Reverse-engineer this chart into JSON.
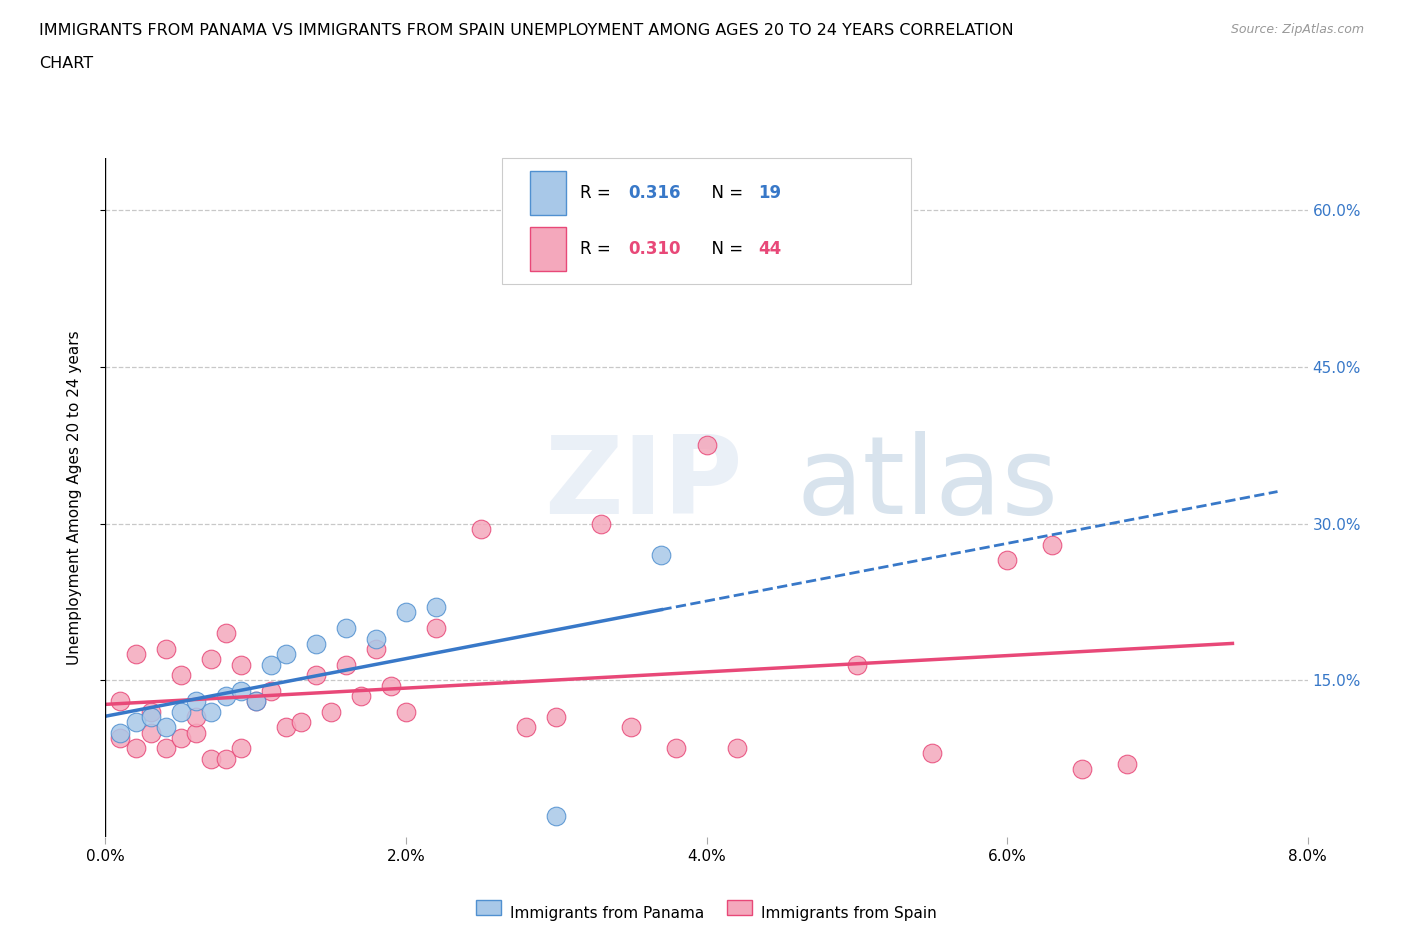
{
  "title_line1": "IMMIGRANTS FROM PANAMA VS IMMIGRANTS FROM SPAIN UNEMPLOYMENT AMONG AGES 20 TO 24 YEARS CORRELATION",
  "title_line2": "CHART",
  "source": "Source: ZipAtlas.com",
  "ylabel": "Unemployment Among Ages 20 to 24 years",
  "xlim": [
    0.0,
    0.08
  ],
  "ylim": [
    0.0,
    0.65
  ],
  "xticks": [
    0.0,
    0.02,
    0.04,
    0.06,
    0.08
  ],
  "xticklabels": [
    "0.0%",
    "2.0%",
    "4.0%",
    "6.0%",
    "8.0%"
  ],
  "ytick_positions": [
    0.15,
    0.3,
    0.45,
    0.6
  ],
  "ytick_labels": [
    "15.0%",
    "30.0%",
    "45.0%",
    "60.0%"
  ],
  "grid_color": "#c8c8c8",
  "bg_color": "#ffffff",
  "panama_fill": "#a8c8e8",
  "spain_fill": "#f4a8bc",
  "panama_edge": "#5090d0",
  "spain_edge": "#e84878",
  "panama_line_color": "#3878c8",
  "spain_line_color": "#e84878",
  "panama_R": "0.316",
  "panama_N": "19",
  "spain_R": "0.310",
  "spain_N": "44",
  "legend_label_panama": "Immigrants from Panama",
  "legend_label_spain": "Immigrants from Spain",
  "panama_x": [
    0.001,
    0.002,
    0.003,
    0.004,
    0.005,
    0.006,
    0.007,
    0.008,
    0.009,
    0.01,
    0.011,
    0.012,
    0.014,
    0.016,
    0.018,
    0.02,
    0.022,
    0.03,
    0.037
  ],
  "panama_y": [
    0.1,
    0.11,
    0.115,
    0.105,
    0.12,
    0.13,
    0.12,
    0.135,
    0.14,
    0.13,
    0.165,
    0.175,
    0.185,
    0.2,
    0.19,
    0.215,
    0.22,
    0.02,
    0.27
  ],
  "spain_x": [
    0.001,
    0.001,
    0.002,
    0.002,
    0.003,
    0.003,
    0.004,
    0.004,
    0.005,
    0.005,
    0.006,
    0.006,
    0.007,
    0.007,
    0.008,
    0.008,
    0.009,
    0.009,
    0.01,
    0.011,
    0.012,
    0.013,
    0.014,
    0.015,
    0.016,
    0.017,
    0.018,
    0.019,
    0.02,
    0.022,
    0.025,
    0.028,
    0.03,
    0.033,
    0.035,
    0.038,
    0.04,
    0.042,
    0.05,
    0.055,
    0.06,
    0.063,
    0.065,
    0.068
  ],
  "spain_y": [
    0.095,
    0.13,
    0.085,
    0.175,
    0.1,
    0.12,
    0.085,
    0.18,
    0.095,
    0.155,
    0.1,
    0.115,
    0.075,
    0.17,
    0.075,
    0.195,
    0.085,
    0.165,
    0.13,
    0.14,
    0.105,
    0.11,
    0.155,
    0.12,
    0.165,
    0.135,
    0.18,
    0.145,
    0.12,
    0.2,
    0.295,
    0.105,
    0.115,
    0.3,
    0.105,
    0.085,
    0.375,
    0.085,
    0.165,
    0.08,
    0.265,
    0.28,
    0.065,
    0.07
  ]
}
